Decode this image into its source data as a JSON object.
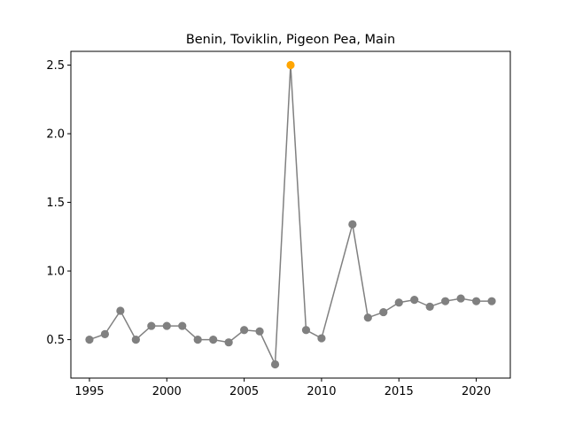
{
  "chart_data": {
    "type": "line",
    "title": "Benin, Toviklin, Pigeon Pea, Main",
    "xlabel": "",
    "ylabel": "",
    "xlim": [
      1993.8,
      2022.2
    ],
    "ylim": [
      0.22,
      2.6
    ],
    "xticks": [
      1995,
      2000,
      2005,
      2010,
      2015,
      2020
    ],
    "yticks": [
      0.5,
      1.0,
      1.5,
      2.0,
      2.5
    ],
    "grid": false,
    "line_color": "#808080",
    "highlight_color": "#ffa500",
    "series": [
      {
        "x": [
          1995,
          1996,
          1997,
          1998,
          1999,
          2000,
          2001,
          2002,
          2003,
          2004,
          2005,
          2006,
          2007,
          2008,
          2009,
          2010,
          2012,
          2013,
          2014,
          2015,
          2016,
          2017,
          2018,
          2019,
          2020,
          2021
        ],
        "y": [
          0.5,
          0.54,
          0.71,
          0.5,
          0.6,
          0.6,
          0.6,
          0.5,
          0.5,
          0.48,
          0.57,
          0.56,
          0.32,
          2.5,
          0.57,
          0.51,
          1.34,
          0.66,
          0.7,
          0.77,
          0.79,
          0.74,
          0.78,
          0.8,
          0.78,
          0.78
        ]
      }
    ],
    "highlight_x": 2008
  }
}
